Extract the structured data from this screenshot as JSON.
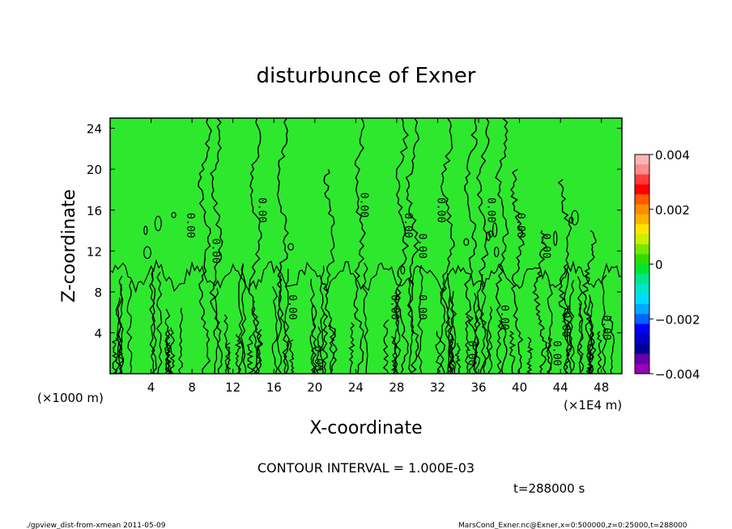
{
  "chart_data": {
    "type": "heatmap",
    "title": "disturbunce of Exner",
    "xlabel": "X-coordinate",
    "ylabel": "Z-coordinate",
    "x_unit_left": "(×1000 m)",
    "x_unit_right": "(×1E4 m)",
    "xlim": [
      0,
      50
    ],
    "ylim": [
      0,
      25
    ],
    "x_ticks": [
      "4",
      "8",
      "12",
      "16",
      "20",
      "24",
      "28",
      "32",
      "36",
      "40",
      "44",
      "48"
    ],
    "y_ticks": [
      "4",
      "8",
      "12",
      "16",
      "20",
      "24"
    ],
    "colorbar": {
      "ticks": [
        "0.004",
        "0.002",
        "0",
        "−0.002",
        "−0.004"
      ],
      "range": [
        -0.004,
        0.004
      ],
      "colors": [
        "#ffb4b4",
        "#ff8c8c",
        "#ff3c3c",
        "#ff0000",
        "#ff5a00",
        "#ff8c00",
        "#ffb400",
        "#ffe600",
        "#c8f000",
        "#78e600",
        "#32dc00",
        "#00e632",
        "#00e68c",
        "#00e6c8",
        "#00dcff",
        "#00aaff",
        "#0064ff",
        "#0000ff",
        "#0000c8",
        "#000096",
        "#6400aa",
        "#9600b4"
      ]
    },
    "contour_labels": [
      "0.00"
    ],
    "contour_interval": "CONTOUR INTERVAL = 1.000E-03",
    "time_label": "t=288000 s"
  },
  "footer": {
    "left": "./gpview_dist-from-xmean  2011-05-09",
    "right": "MarsCond_Exner.nc@Exner,x=0:500000,z=0:25000,t=288000"
  },
  "colors": {
    "field_base": "#00e632",
    "field_light": "#3ae83a",
    "background": "#ffffff"
  }
}
